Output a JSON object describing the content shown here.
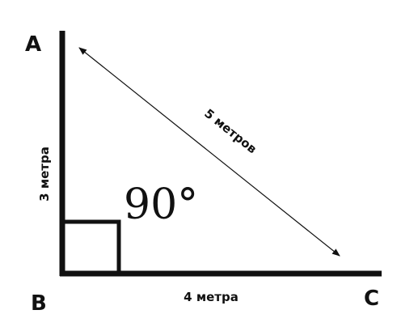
{
  "diagram": {
    "vertices": {
      "a": "A",
      "b": "B",
      "c": "C"
    },
    "sides": {
      "vertical": "3 метра",
      "horizontal": "4 метра",
      "hypotenuse": "5 метров"
    },
    "angle": "90°"
  }
}
